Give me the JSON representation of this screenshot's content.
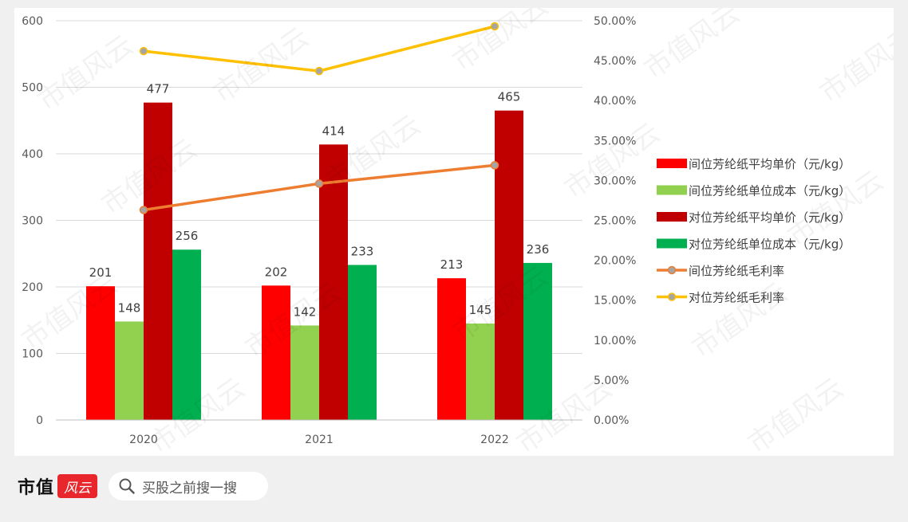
{
  "chart_data": {
    "type": "bar",
    "categories": [
      "2020",
      "2021",
      "2022"
    ],
    "series": [
      {
        "name": "间位芳纶纸平均单价（元/kg）",
        "kind": "bar",
        "axis": "left",
        "color": "#ff0000",
        "values": [
          201,
          202,
          213
        ]
      },
      {
        "name": "间位芳纶纸单位成本（元/kg）",
        "kind": "bar",
        "axis": "left",
        "color": "#92d050",
        "values": [
          148,
          142,
          145
        ]
      },
      {
        "name": "对位芳纶纸平均单价（元/kg）",
        "kind": "bar",
        "axis": "left",
        "color": "#c00000",
        "values": [
          477,
          414,
          465
        ]
      },
      {
        "name": "对位芳纶纸单位成本（元/kg）",
        "kind": "bar",
        "axis": "left",
        "color": "#00b050",
        "values": [
          256,
          233,
          236
        ]
      },
      {
        "name": "间位芳纶纸毛利率",
        "kind": "line",
        "axis": "right",
        "color": "#ed7d31",
        "values": [
          0.263,
          0.296,
          0.319
        ]
      },
      {
        "name": "对位芳纶纸毛利率",
        "kind": "line",
        "axis": "right",
        "color": "#ffc000",
        "values": [
          0.462,
          0.437,
          0.493
        ]
      }
    ],
    "y_left": {
      "min": 0,
      "max": 600,
      "ticks": [
        "0",
        "100",
        "200",
        "300",
        "400",
        "500",
        "600"
      ]
    },
    "y_right": {
      "min": 0,
      "max": 0.5,
      "ticks": [
        "0.00%",
        "5.00%",
        "10.00%",
        "15.00%",
        "20.00%",
        "25.00%",
        "30.00%",
        "35.00%",
        "40.00%",
        "45.00%",
        "50.00%"
      ]
    },
    "title": "",
    "xlabel": "",
    "ylabel": "",
    "grid": true,
    "legend_position": "right"
  },
  "watermark": {
    "text": "市值风云"
  },
  "footer": {
    "brand_name": "市值",
    "brand_badge": "风云",
    "search_placeholder": "买股之前搜一搜"
  }
}
